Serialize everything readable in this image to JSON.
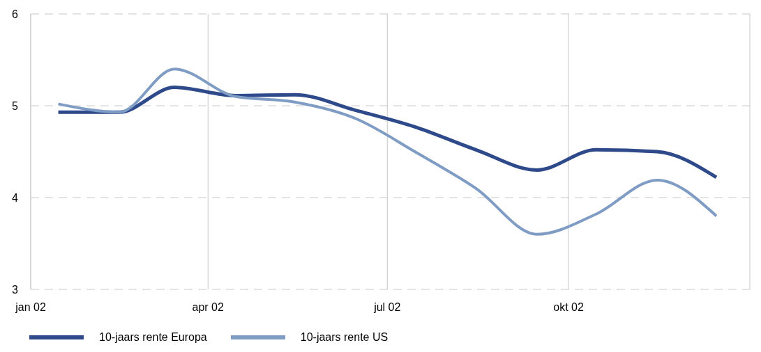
{
  "chart_data": {
    "type": "line",
    "x": [
      "2002-01-15",
      "2002-02-15",
      "2002-03-15",
      "2002-04-15",
      "2002-05-15",
      "2002-06-15",
      "2002-07-15",
      "2002-08-15",
      "2002-09-15",
      "2002-10-15",
      "2002-11-15",
      "2002-12-15"
    ],
    "series": [
      {
        "name": "10-jaars rente Europa",
        "color": "#2e4a8a",
        "values": [
          4.93,
          4.93,
          5.2,
          5.11,
          5.12,
          4.95,
          4.77,
          4.52,
          4.3,
          4.52,
          4.5,
          4.22
        ]
      },
      {
        "name": "10-jaars rente US",
        "color": "#7f9cc4",
        "values": [
          5.02,
          4.93,
          5.4,
          5.1,
          5.04,
          4.86,
          4.5,
          4.1,
          3.6,
          3.82,
          4.19,
          3.8
        ]
      }
    ],
    "xlim": [
      "2002-01-01",
      "2003-01-01"
    ],
    "xticks": [
      {
        "value": "2002-01-01",
        "label": "jan 02"
      },
      {
        "value": "2002-04-01",
        "label": "apr 02"
      },
      {
        "value": "2002-07-01",
        "label": "jul 02"
      },
      {
        "value": "2002-10-01",
        "label": "okt 02"
      }
    ],
    "ylim": [
      3,
      6
    ],
    "yticks": [
      3,
      4,
      5,
      6
    ],
    "grid": true,
    "legend": "bottom",
    "marker": "none",
    "line_style": "solid"
  }
}
